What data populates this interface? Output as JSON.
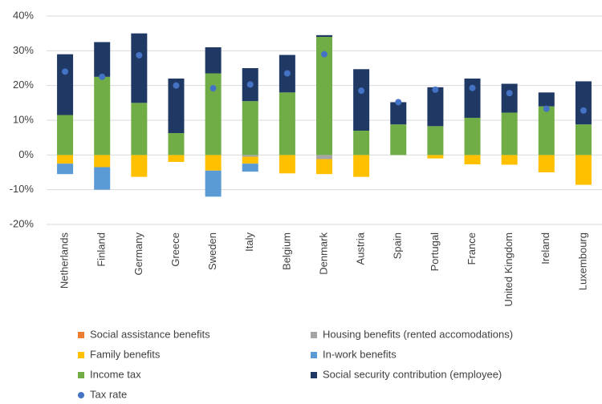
{
  "chart_data": {
    "type": "bar",
    "stacked": true,
    "grid": true,
    "categories": [
      "Netherlands",
      "Finland",
      "Germany",
      "Greece",
      "Sweden",
      "Italy",
      "Belgium",
      "Denmark",
      "Austria",
      "Spain",
      "Portugal",
      "France",
      "United Kingdom",
      "Ireland",
      "Luxembourg"
    ],
    "ylim": [
      -20,
      40
    ],
    "yticks": [
      {
        "value": -20,
        "label": "-20%"
      },
      {
        "value": -10,
        "label": "-10%"
      },
      {
        "value": 0,
        "label": "0%"
      },
      {
        "value": 10,
        "label": "10%"
      },
      {
        "value": 20,
        "label": "20%"
      },
      {
        "value": 30,
        "label": "30%"
      },
      {
        "value": 40,
        "label": "40%"
      }
    ],
    "series": [
      {
        "name": "Social assistance benefits",
        "color": "#ed7d31",
        "values": [
          0,
          0,
          0,
          0,
          0,
          0,
          0,
          0,
          0,
          0,
          0,
          0,
          0,
          0,
          0
        ]
      },
      {
        "name": "Housing benefits (rented accomodations)",
        "color": "#a5a5a5",
        "values": [
          0,
          0,
          0,
          0,
          0,
          -0.5,
          0,
          -1.2,
          0,
          0,
          0,
          0,
          0,
          0,
          0
        ]
      },
      {
        "name": "Family benefits",
        "color": "#ffc000",
        "values": [
          -2.5,
          -3.5,
          -6.3,
          -2,
          -4.5,
          -2,
          -5.3,
          -4.3,
          -6.3,
          0,
          -1,
          -2.7,
          -2.8,
          -5,
          -8.6
        ]
      },
      {
        "name": "In-work benefits",
        "color": "#5b9bd5",
        "values": [
          -3,
          -6.5,
          0,
          0,
          -7.5,
          -2.3,
          0,
          0,
          0,
          0,
          0,
          0,
          0,
          0,
          0
        ]
      },
      {
        "name": "Income tax",
        "color": "#70ad47",
        "values": [
          11.5,
          22.5,
          15,
          6.3,
          23.5,
          15.5,
          18,
          34,
          7,
          8.8,
          8.3,
          10.7,
          12.2,
          14,
          8.8
        ]
      },
      {
        "name": "Social security contribution (employee)",
        "color": "#203864",
        "values": [
          17.5,
          10,
          20,
          15.7,
          7.5,
          9.5,
          10.8,
          0.5,
          17.7,
          6.4,
          11.2,
          11.3,
          8.3,
          4,
          12.4
        ]
      },
      {
        "name": "Tax rate",
        "color": "#4472c4",
        "type": "scatter",
        "values": [
          24,
          22.5,
          28.7,
          20,
          19.2,
          20.3,
          23.5,
          29,
          18.5,
          15.2,
          18.8,
          19.3,
          17.8,
          13.3,
          12.8
        ]
      }
    ]
  }
}
